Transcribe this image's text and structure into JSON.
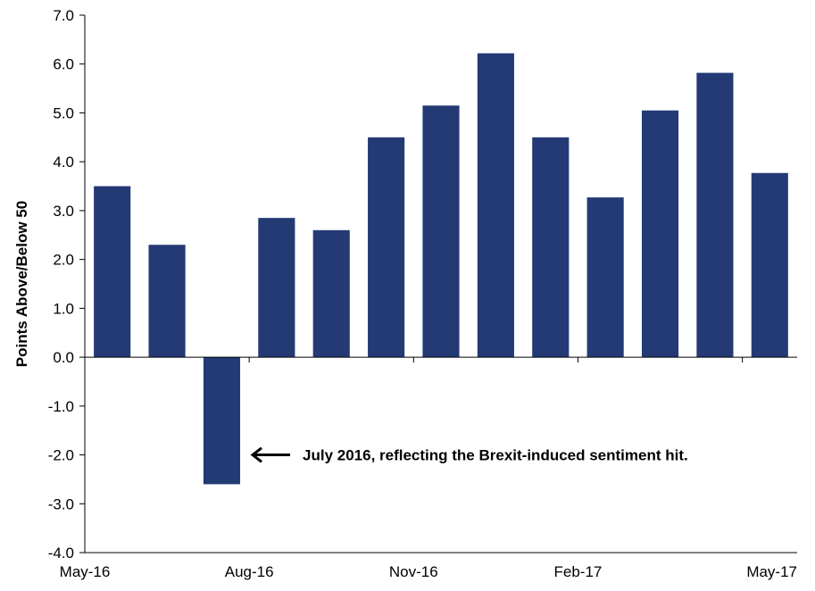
{
  "chart_data": {
    "type": "bar",
    "title": "",
    "xlabel": "",
    "ylabel": "Points Above/Below 50",
    "ylim": [
      -4.0,
      7.0
    ],
    "ytick_step": 1.0,
    "ytick_labels": [
      "-4.0",
      "-3.0",
      "-2.0",
      "-1.0",
      "0.0",
      "1.0",
      "2.0",
      "3.0",
      "4.0",
      "5.0",
      "6.0",
      "7.0"
    ],
    "categories": [
      "May-16",
      "Jun-16",
      "Jul-16",
      "Aug-16",
      "Sep-16",
      "Oct-16",
      "Nov-16",
      "Dec-16",
      "Jan-17",
      "Feb-17",
      "Mar-17",
      "Apr-17",
      "May-17"
    ],
    "xtick_labels": [
      "May-16",
      "Aug-16",
      "Nov-16",
      "Feb-17",
      "May-17"
    ],
    "values": [
      3.5,
      2.3,
      -2.6,
      2.85,
      2.6,
      4.5,
      5.15,
      6.22,
      4.5,
      3.27,
      5.05,
      5.82,
      3.77
    ],
    "bar_color": "#233a75",
    "grid": false,
    "legend": "none",
    "annotation": {
      "text": "July 2016, reflecting the Brexit-induced sentiment hit.",
      "target_category": "Jul-16"
    }
  }
}
